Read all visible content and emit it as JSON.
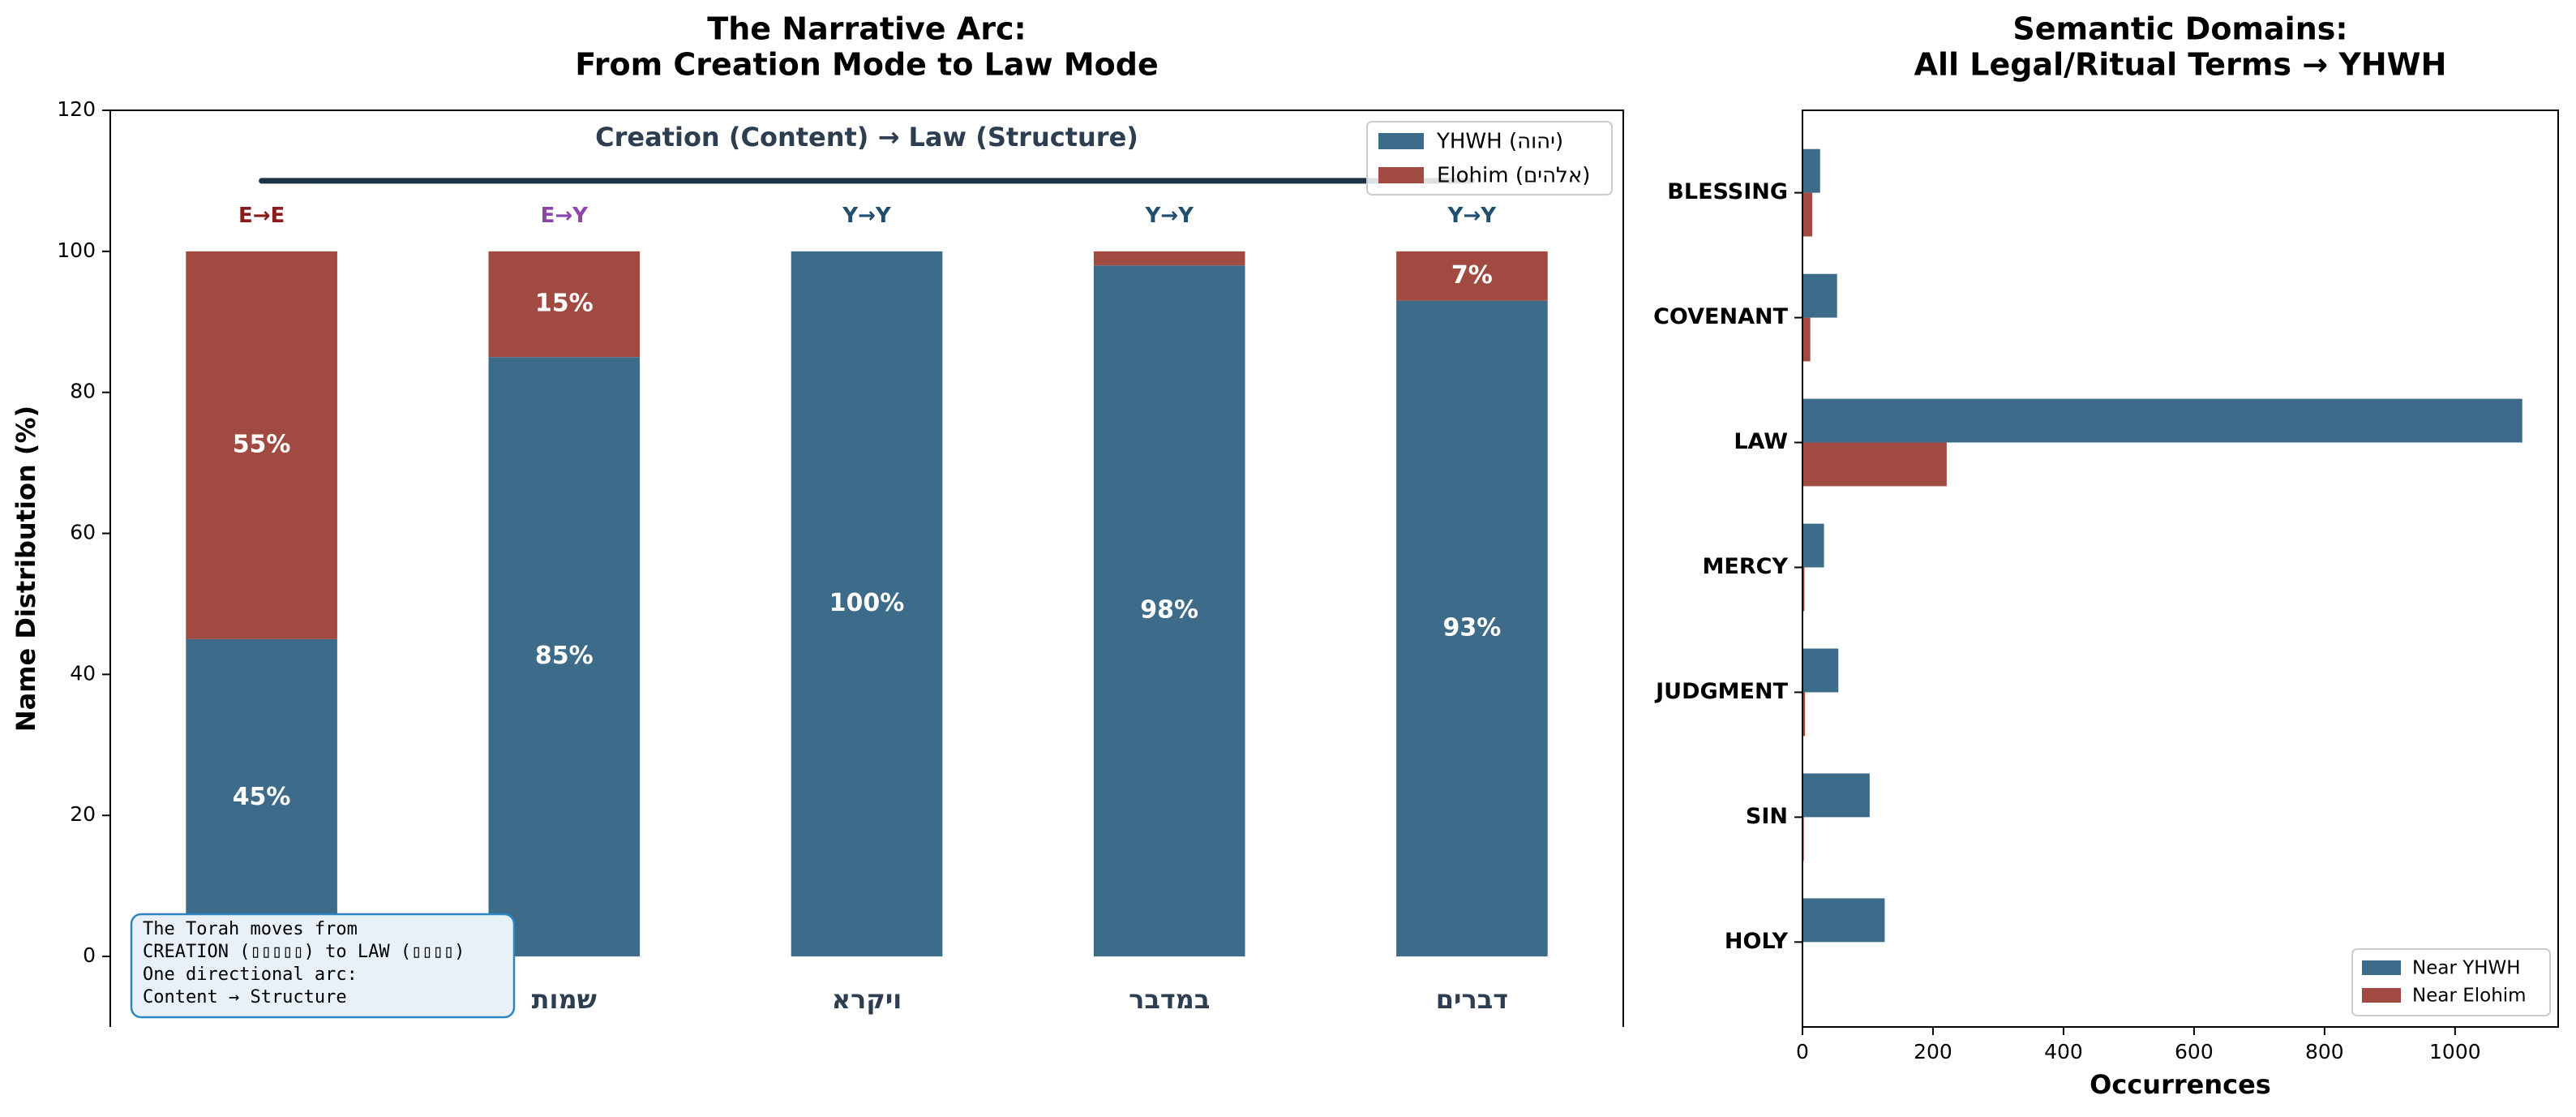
{
  "chart_data": [
    {
      "type": "stacked_bar",
      "title": [
        "The Narrative Arc:",
        "From Creation Mode to Law Mode"
      ],
      "ylabel": "Name Distribution (%)",
      "categories": [
        null,
        "שמות",
        "ויקרא",
        "במדבר",
        "דברים"
      ],
      "series": [
        {
          "name": "YHWH (יהוה)",
          "color": "#3d6b8a",
          "values": [
            45,
            85,
            100,
            98,
            93
          ],
          "value_labels": [
            "45%",
            "85%",
            "100%",
            "98%",
            "93%"
          ]
        },
        {
          "name": "Elohim (אלהים)",
          "color": "#a04a42",
          "values": [
            55,
            15,
            0,
            2,
            7
          ],
          "value_labels": [
            "55%",
            "15%",
            null,
            null,
            "7%"
          ]
        }
      ],
      "top_labels": [
        "E→E",
        "E→Y",
        "Y→Y",
        "Y→Y",
        "Y→Y"
      ],
      "top_label_colors": [
        "#8b1a1a",
        "#8e44ad",
        "#1f4e6e",
        "#1f4e6e",
        "#1f4e6e"
      ],
      "arc_label": "Creation (Content) → Law (Structure)",
      "annotation": [
        "The Torah moves from",
        "CREATION (▯▯▯▯▯) to LAW (▯▯▯▯)",
        "One directional arc:",
        "Content → Structure"
      ],
      "ylim": [
        -10,
        120
      ],
      "yticks": [
        0,
        20,
        40,
        60,
        80,
        100,
        120
      ],
      "legend": "upper right"
    },
    {
      "type": "barh",
      "title": [
        "Semantic Domains:",
        "All Legal/Ritual Terms → YHWH"
      ],
      "xlabel": "Occurrences",
      "categories": [
        "HOLY",
        "SIN",
        "JUDGMENT",
        "MERCY",
        "LAW",
        "COVENANT",
        "BLESSING"
      ],
      "series": [
        {
          "name": "Near YHWH",
          "color": "#3d6b8a",
          "values": [
            126,
            103,
            55,
            33,
            1103,
            53,
            27
          ]
        },
        {
          "name": "Near Elohim",
          "color": "#a04a42",
          "values": [
            0,
            2,
            4,
            3,
            221,
            12,
            15
          ]
        }
      ],
      "xlim": [
        0,
        1158
      ],
      "xticks": [
        0,
        200,
        400,
        600,
        800,
        1000
      ],
      "legend": "lower right"
    }
  ]
}
